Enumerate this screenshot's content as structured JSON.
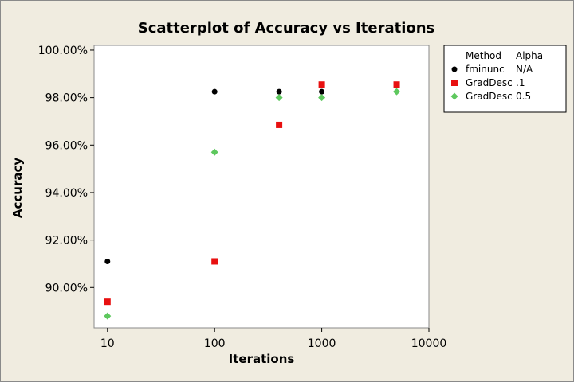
{
  "chart_data": {
    "type": "scatter",
    "title": "Scatterplot of Accuracy vs Iterations",
    "xlabel": "Iterations",
    "ylabel": "Accuracy",
    "x_scale": "log",
    "xlim": [
      7.5,
      10000
    ],
    "ylim": [
      88.3,
      100.2
    ],
    "x_ticks": [
      10,
      100,
      1000,
      10000
    ],
    "x_tick_labels": [
      "10",
      "100",
      "1000",
      "10000"
    ],
    "y_ticks": [
      90,
      92,
      94,
      96,
      98,
      100
    ],
    "y_tick_labels": [
      "90.00%",
      "92.00%",
      "94.00%",
      "96.00%",
      "98.00%",
      "100.00%"
    ],
    "grid": false,
    "legend": {
      "placement": "right",
      "header": [
        "Method",
        "Alpha"
      ]
    },
    "series": [
      {
        "method": "fminunc",
        "alpha": "N/A",
        "color": "#000000",
        "marker": "circle",
        "x": [
          10,
          100,
          400,
          1000
        ],
        "y": [
          91.1,
          98.25,
          98.25,
          98.25
        ]
      },
      {
        "method": "GradDesc",
        "alpha": ".1",
        "color": "#e81010",
        "marker": "square",
        "x": [
          10,
          100,
          400,
          1000,
          5000
        ],
        "y": [
          89.4,
          91.1,
          96.85,
          98.55,
          98.55
        ]
      },
      {
        "method": "GradDesc",
        "alpha": "0.5",
        "color": "#5ec85e",
        "marker": "diamond",
        "x": [
          10,
          100,
          400,
          1000,
          5000
        ],
        "y": [
          88.8,
          95.7,
          98.0,
          98.0,
          98.25
        ]
      }
    ]
  }
}
